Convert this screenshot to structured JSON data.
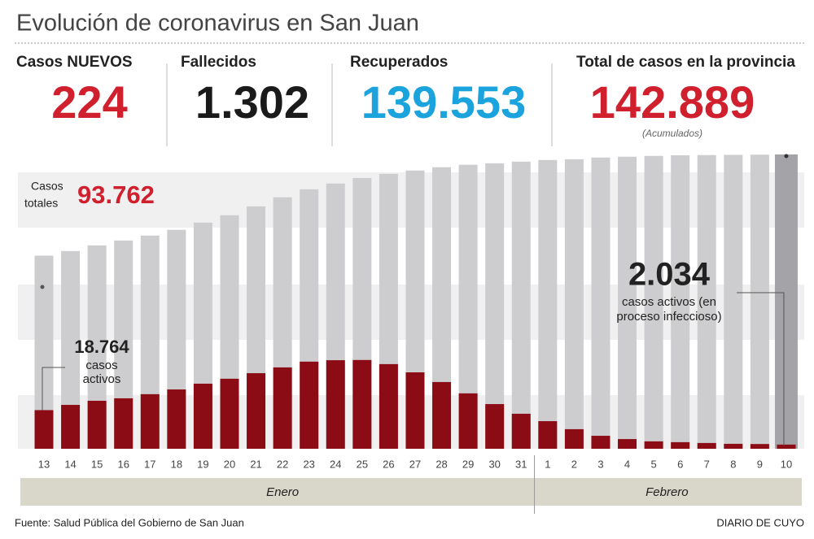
{
  "chart_data": {
    "type": "bar",
    "title": "Evolución de coronavirus en San Juan",
    "stats": [
      {
        "label": "Casos NUEVOS",
        "value": "224",
        "color": "#d0202e"
      },
      {
        "label": "Fallecidos",
        "value": "1.302",
        "color": "#1a1a1a"
      },
      {
        "label": "Recuperados",
        "value": "139.553",
        "color": "#1ba3dd"
      },
      {
        "label": "Total de casos en la provincia",
        "value": "142.889",
        "color": "#d0202e",
        "note": "(Acumulados)"
      }
    ],
    "months": [
      {
        "name": "Enero",
        "days": [
          "13",
          "14",
          "15",
          "16",
          "17",
          "18",
          "19",
          "20",
          "21",
          "22",
          "23",
          "24",
          "25",
          "26",
          "27",
          "28",
          "29",
          "30",
          "31"
        ]
      },
      {
        "name": "Febrero",
        "days": [
          "1",
          "2",
          "3",
          "4",
          "5",
          "6",
          "7",
          "8",
          "9",
          "10"
        ]
      }
    ],
    "ylim": [
      0,
      150000
    ],
    "series": [
      {
        "name": "Casos totales",
        "color": "#cdcdcf",
        "last_color": "#a3a3a8",
        "values": [
          93762,
          96000,
          98750,
          101100,
          103500,
          106300,
          109800,
          113400,
          117700,
          122100,
          126000,
          128800,
          131500,
          133500,
          135100,
          136700,
          137900,
          138600,
          139400,
          140200,
          140600,
          141400,
          141800,
          142200,
          142500,
          142600,
          142700,
          142800,
          142889
        ],
        "value_labels": [
          "93.762",
          null,
          null,
          null,
          null,
          null,
          null,
          null,
          null,
          null,
          null,
          null,
          null,
          null,
          null,
          null,
          null,
          null,
          null,
          null,
          null,
          null,
          null,
          null,
          null,
          null,
          null,
          null,
          null
        ]
      },
      {
        "name": "casos activos",
        "color": "#8b0c14",
        "values": [
          18764,
          21300,
          23300,
          24500,
          26500,
          28800,
          31600,
          34000,
          36700,
          39500,
          42300,
          43000,
          43100,
          41100,
          37100,
          32400,
          26900,
          21700,
          17000,
          13400,
          9500,
          6300,
          4700,
          3600,
          3200,
          2800,
          2400,
          2300,
          2034
        ],
        "value_labels": [
          "18.764",
          null,
          null,
          null,
          null,
          null,
          null,
          null,
          null,
          null,
          null,
          null,
          null,
          null,
          null,
          null,
          null,
          null,
          null,
          null,
          null,
          null,
          null,
          null,
          null,
          null,
          null,
          null,
          "2.034"
        ]
      }
    ],
    "annotations": [
      "Casos",
      "totales",
      "casos",
      "activos",
      "casos activos (en",
      "proceso infeccioso)"
    ],
    "source": "Fuente: Salud Pública del Gobierno de San Juan",
    "brand": "DIARIO DE CUYO"
  }
}
